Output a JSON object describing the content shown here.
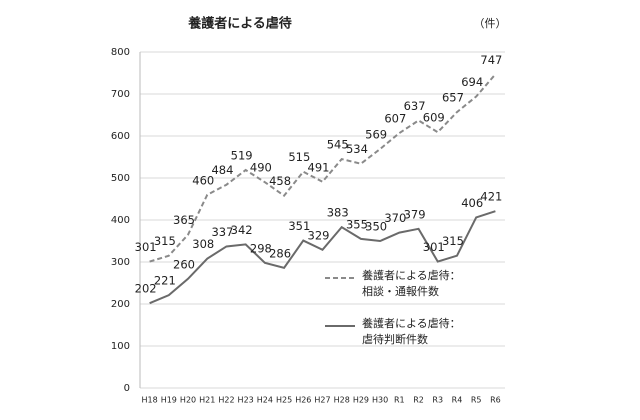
{
  "chart_data": {
    "type": "line",
    "title": "養護者による虐待",
    "unit_label": "（件）",
    "categories": [
      "H18",
      "H19",
      "H20",
      "H21",
      "H22",
      "H23",
      "H24",
      "H25",
      "H26",
      "H27",
      "H28",
      "H29",
      "H30",
      "R1",
      "R2",
      "R3",
      "R4",
      "R5",
      "R6"
    ],
    "series": [
      {
        "name": "養護者による虐待：\n相談・通報件数",
        "color": "#8a8a8a",
        "dash": true,
        "values": [
          301,
          315,
          365,
          460,
          484,
          519,
          490,
          458,
          515,
          491,
          545,
          534,
          569,
          607,
          637,
          609,
          657,
          694,
          747
        ]
      },
      {
        "name": "養護者による虐待：\n虐待判断件数",
        "color": "#6a6a6a",
        "dash": false,
        "values": [
          202,
          221,
          260,
          308,
          337,
          342,
          298,
          286,
          351,
          329,
          383,
          355,
          350,
          370,
          379,
          301,
          315,
          406,
          421
        ]
      }
    ],
    "ylim": [
      0,
      800
    ],
    "yticks": [
      0,
      100,
      200,
      300,
      400,
      500,
      600,
      700,
      800
    ],
    "grid": true
  }
}
